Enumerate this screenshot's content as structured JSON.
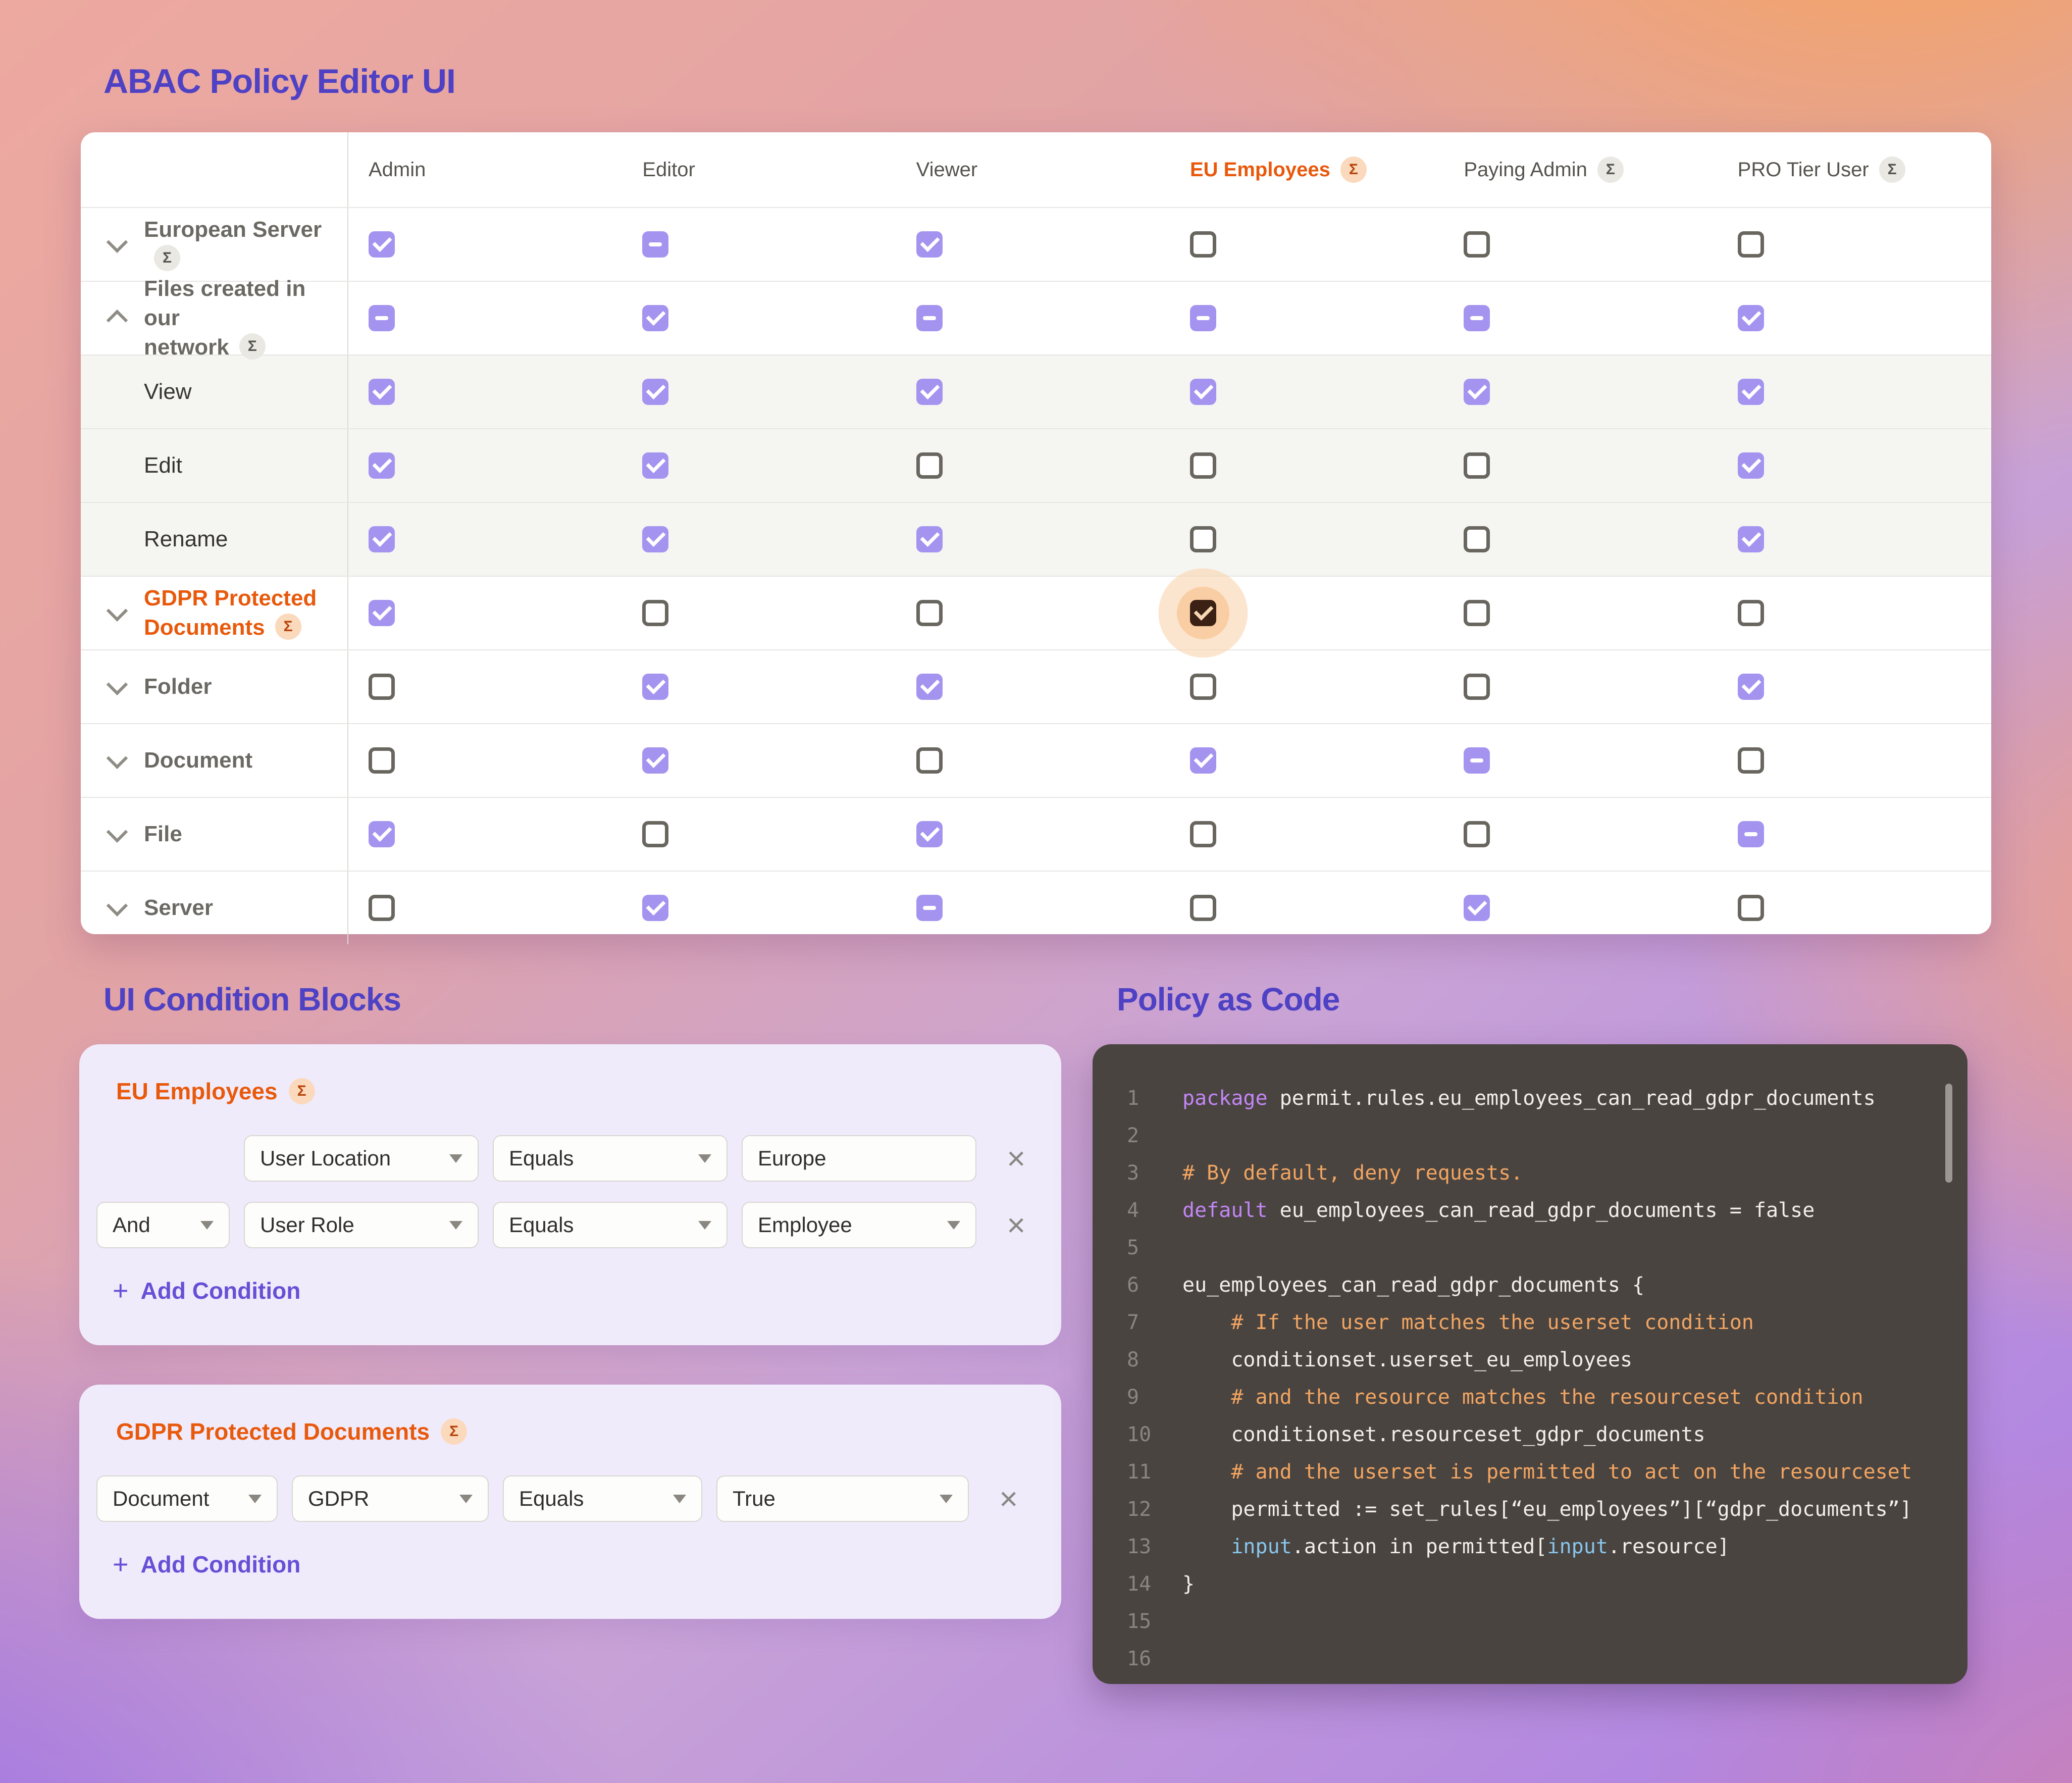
{
  "page": {
    "title": "ABAC Policy Editor UI"
  },
  "colors": {
    "brand_indigo": "#4e41c4",
    "accent_purple_checkbox": "#a494f0",
    "accent_orange": "#e8590c",
    "highlight_checkbox": "#3a2113",
    "code_keyword": "#c287f5",
    "code_comment": "#f2a561",
    "code_builtin": "#88c6ec"
  },
  "matrix": {
    "badge_glyph": "Σ",
    "columns": [
      {
        "label": "Admin",
        "badge": null,
        "accent": false
      },
      {
        "label": "Editor",
        "badge": null,
        "accent": false
      },
      {
        "label": "Viewer",
        "badge": null,
        "accent": false
      },
      {
        "label": "EU Employees",
        "badge": "orange",
        "accent": true
      },
      {
        "label": "Paying Admin",
        "badge": "gray",
        "accent": false
      },
      {
        "label": "PRO Tier User",
        "badge": "gray",
        "accent": false
      }
    ],
    "rows": [
      {
        "lines": [
          "European Server"
        ],
        "badge": "gray",
        "chevron": "down",
        "kind": "resource",
        "shaded": false,
        "states": [
          "checked",
          "dash",
          "checked",
          "empty",
          "empty",
          "empty"
        ]
      },
      {
        "lines": [
          "Files created in our",
          "network"
        ],
        "badge": "gray",
        "chevron": "up",
        "kind": "resource",
        "shaded": false,
        "states": [
          "dash",
          "checked",
          "dash",
          "dash",
          "dash",
          "checked"
        ]
      },
      {
        "lines": [
          "View"
        ],
        "badge": null,
        "chevron": null,
        "kind": "action",
        "shaded": true,
        "states": [
          "checked",
          "checked",
          "checked",
          "checked",
          "checked",
          "checked"
        ]
      },
      {
        "lines": [
          "Edit"
        ],
        "badge": null,
        "chevron": null,
        "kind": "action",
        "shaded": true,
        "states": [
          "checked",
          "checked",
          "empty",
          "empty",
          "empty",
          "checked"
        ]
      },
      {
        "lines": [
          "Rename"
        ],
        "badge": null,
        "chevron": null,
        "kind": "action",
        "shaded": true,
        "states": [
          "checked",
          "checked",
          "checked",
          "empty",
          "empty",
          "checked"
        ]
      },
      {
        "lines": [
          "GDPR Protected",
          "Documents"
        ],
        "badge": "orange",
        "chevron": "down",
        "kind": "resource-orange",
        "shaded": false,
        "states": [
          "checked",
          "empty",
          "empty",
          "highlight",
          "empty",
          "empty"
        ]
      },
      {
        "lines": [
          "Folder"
        ],
        "badge": null,
        "chevron": "down",
        "kind": "resource",
        "shaded": false,
        "states": [
          "empty",
          "checked",
          "checked",
          "empty",
          "empty",
          "checked"
        ]
      },
      {
        "lines": [
          "Document"
        ],
        "badge": null,
        "chevron": "down",
        "kind": "resource",
        "shaded": false,
        "states": [
          "empty",
          "checked",
          "empty",
          "checked",
          "dash",
          "empty"
        ]
      },
      {
        "lines": [
          "File"
        ],
        "badge": null,
        "chevron": "down",
        "kind": "resource",
        "shaded": false,
        "states": [
          "checked",
          "empty",
          "checked",
          "empty",
          "empty",
          "dash"
        ]
      },
      {
        "lines": [
          "Server"
        ],
        "badge": null,
        "chevron": "down",
        "kind": "resource",
        "shaded": false,
        "states": [
          "empty",
          "checked",
          "dash",
          "empty",
          "checked",
          "empty"
        ]
      }
    ]
  },
  "conditions": {
    "title": "UI Condition Blocks",
    "add_plus": "+",
    "blocks": [
      {
        "title": "EU Employees",
        "badge": "orange",
        "add_label": "Add Condition",
        "rows": [
          {
            "logic": null,
            "spacer": true,
            "fields": [
              {
                "label": "User Location",
                "arrow": true
              },
              {
                "label": "Equals",
                "arrow": true
              },
              {
                "label": "Europe",
                "arrow": false
              }
            ]
          },
          {
            "logic": {
              "label": "And",
              "arrow": true
            },
            "spacer": false,
            "fields": [
              {
                "label": "User Role",
                "arrow": true
              },
              {
                "label": "Equals",
                "arrow": true
              },
              {
                "label": "Employee",
                "arrow": true
              }
            ]
          }
        ]
      },
      {
        "title": "GDPR Protected Documents",
        "badge": "orange",
        "add_label": "Add Condition",
        "rows": [
          {
            "logic": null,
            "spacer": false,
            "fields": [
              {
                "label": "Document",
                "arrow": true
              },
              {
                "label": "GDPR",
                "arrow": true
              },
              {
                "label": "Equals",
                "arrow": true
              },
              {
                "label": "True",
                "arrow": true
              }
            ]
          }
        ]
      }
    ]
  },
  "code": {
    "title": "Policy as Code",
    "lines": [
      {
        "n": "1",
        "tokens": [
          {
            "c": "kw",
            "t": "package"
          },
          {
            "c": "pl",
            "t": " permit.rules.eu_employees_can_read_gdpr_documents"
          }
        ]
      },
      {
        "n": "2",
        "tokens": []
      },
      {
        "n": "3",
        "tokens": [
          {
            "c": "cm",
            "t": "# By default, deny requests."
          }
        ]
      },
      {
        "n": "4",
        "tokens": [
          {
            "c": "kw",
            "t": "default"
          },
          {
            "c": "pl",
            "t": " eu_employees_can_read_gdpr_documents = false"
          }
        ]
      },
      {
        "n": "5",
        "tokens": []
      },
      {
        "n": "6",
        "tokens": [
          {
            "c": "pl",
            "t": "eu_employees_can_read_gdpr_documents {"
          }
        ]
      },
      {
        "n": "7",
        "tokens": [
          {
            "c": "cm",
            "t": "    # If the user matches the userset condition"
          }
        ]
      },
      {
        "n": "8",
        "tokens": [
          {
            "c": "pl",
            "t": "    conditionset.userset_eu_employees"
          }
        ]
      },
      {
        "n": "9",
        "tokens": [
          {
            "c": "cm",
            "t": "    # and the resource matches the resourceset condition"
          }
        ]
      },
      {
        "n": "10",
        "tokens": [
          {
            "c": "pl",
            "t": "    conditionset.resourceset_gdpr_documents"
          }
        ]
      },
      {
        "n": "11",
        "tokens": [
          {
            "c": "cm",
            "t": "    # and the userset is permitted to act on the resourceset"
          }
        ]
      },
      {
        "n": "12",
        "tokens": [
          {
            "c": "pl",
            "t": "    permitted := set_rules[“eu_employees”][“gdpr_documents”]"
          }
        ]
      },
      {
        "n": "13",
        "tokens": [
          {
            "c": "bi",
            "t": "    input"
          },
          {
            "c": "pl",
            "t": ".action in permitted["
          },
          {
            "c": "bi",
            "t": "input"
          },
          {
            "c": "pl",
            "t": ".resource]"
          }
        ]
      },
      {
        "n": "14",
        "tokens": [
          {
            "c": "pl",
            "t": "}"
          }
        ]
      },
      {
        "n": "15",
        "tokens": []
      },
      {
        "n": "16",
        "tokens": []
      }
    ]
  }
}
